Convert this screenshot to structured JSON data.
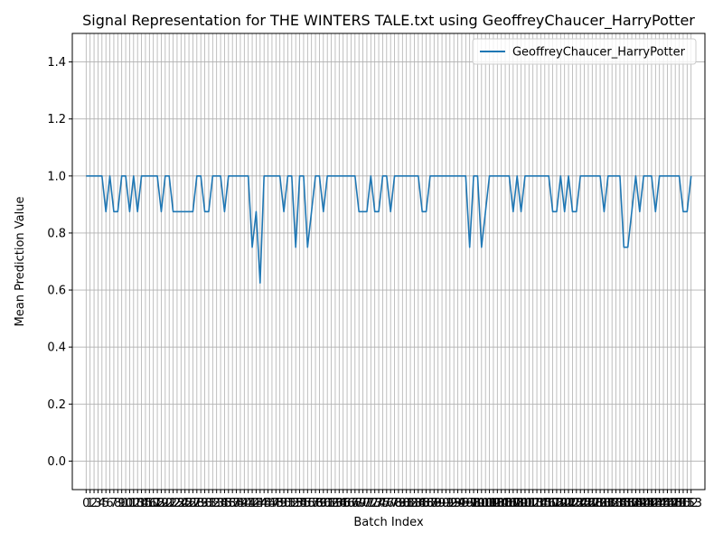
{
  "chart_data": {
    "type": "line",
    "title": "Signal Representation for THE WINTERS TALE.txt using GeoffreyChaucer_HarryPotter",
    "xlabel": "Batch Index",
    "ylabel": "Mean Prediction Value",
    "xlim": [
      -3.5,
      156.5
    ],
    "ylim": [
      -0.1,
      1.5
    ],
    "yticks": [
      0.0,
      0.2,
      0.4,
      0.6,
      0.8,
      1.0,
      1.2,
      1.4
    ],
    "ytick_labels": [
      "0.0",
      "0.2",
      "0.4",
      "0.6",
      "0.8",
      "1.0",
      "1.2",
      "1.4"
    ],
    "xticks": [
      0,
      1,
      2,
      3,
      4,
      5,
      6,
      7,
      8,
      9,
      10,
      11,
      12,
      13,
      14,
      15,
      16,
      17,
      18,
      19,
      20,
      21,
      22,
      23,
      24,
      25,
      26,
      27,
      28,
      29,
      30,
      31,
      32,
      33,
      34,
      35,
      36,
      37,
      38,
      39,
      40,
      41,
      42,
      43,
      44,
      45,
      46,
      47,
      48,
      49,
      50,
      51,
      52,
      53,
      54,
      55,
      56,
      57,
      58,
      59,
      60,
      61,
      62,
      63,
      64,
      65,
      66,
      67,
      68,
      69,
      70,
      71,
      72,
      73,
      74,
      75,
      76,
      77,
      78,
      79,
      80,
      81,
      82,
      83,
      84,
      85,
      86,
      87,
      88,
      89,
      90,
      91,
      92,
      93,
      94,
      95,
      96,
      97,
      98,
      99,
      100,
      101,
      102,
      103,
      104,
      105,
      106,
      107,
      108,
      109,
      110,
      111,
      112,
      113,
      114,
      115,
      116,
      117,
      118,
      119,
      120,
      121,
      122,
      123,
      124,
      125,
      126,
      127,
      128,
      129,
      130,
      131,
      132,
      133,
      134,
      135,
      136,
      137,
      138,
      139,
      140,
      141,
      142,
      143,
      144,
      145,
      146,
      147,
      148,
      149,
      150,
      151,
      152,
      153
    ],
    "xtick_labels": [
      "0",
      "1",
      "2",
      "3",
      "4",
      "5",
      "6",
      "7",
      "8",
      "9",
      "10",
      "11",
      "12",
      "13",
      "14",
      "15",
      "16",
      "17",
      "18",
      "19",
      "20",
      "21",
      "22",
      "23",
      "24",
      "25",
      "26",
      "27",
      "28",
      "29",
      "30",
      "31",
      "32",
      "33",
      "34",
      "35",
      "36",
      "37",
      "38",
      "39",
      "40",
      "41",
      "42",
      "43",
      "44",
      "45",
      "46",
      "47",
      "48",
      "49",
      "50",
      "51",
      "52",
      "53",
      "54",
      "55",
      "56",
      "57",
      "58",
      "59",
      "60",
      "61",
      "62",
      "63",
      "64",
      "65",
      "66",
      "67",
      "68",
      "69",
      "70",
      "71",
      "72",
      "73",
      "74",
      "75",
      "76",
      "77",
      "78",
      "79",
      "80",
      "81",
      "82",
      "83",
      "84",
      "85",
      "86",
      "87",
      "88",
      "89",
      "90",
      "91",
      "92",
      "93",
      "94",
      "95",
      "96",
      "97",
      "98",
      "99",
      "100",
      "101",
      "102",
      "103",
      "104",
      "105",
      "106",
      "107",
      "108",
      "109",
      "110",
      "111",
      "112",
      "113",
      "114",
      "115",
      "116",
      "117",
      "118",
      "119",
      "120",
      "121",
      "122",
      "123",
      "124",
      "125",
      "126",
      "127",
      "128",
      "129",
      "130",
      "131",
      "132",
      "133",
      "134",
      "135",
      "136",
      "137",
      "138",
      "139",
      "140",
      "141",
      "142",
      "143",
      "144",
      "145",
      "146",
      "147",
      "148",
      "149",
      "150",
      "151",
      "152",
      "153"
    ],
    "grid": true,
    "legend_position": "top-right",
    "series": [
      {
        "name": "GeoffreyChaucer_HarryPotter",
        "color": "#1f77b4",
        "x": [
          0,
          1,
          2,
          3,
          4,
          5,
          6,
          7,
          8,
          9,
          10,
          11,
          12,
          13,
          14,
          15,
          16,
          17,
          18,
          19,
          20,
          21,
          22,
          23,
          24,
          25,
          26,
          27,
          28,
          29,
          30,
          31,
          32,
          33,
          34,
          35,
          36,
          37,
          38,
          39,
          40,
          41,
          42,
          43,
          44,
          45,
          46,
          47,
          48,
          49,
          50,
          51,
          52,
          53,
          54,
          55,
          56,
          57,
          58,
          59,
          60,
          61,
          62,
          63,
          64,
          65,
          66,
          67,
          68,
          69,
          70,
          71,
          72,
          73,
          74,
          75,
          76,
          77,
          78,
          79,
          80,
          81,
          82,
          83,
          84,
          85,
          86,
          87,
          88,
          89,
          90,
          91,
          92,
          93,
          94,
          95,
          96,
          97,
          98,
          99,
          100,
          101,
          102,
          103,
          104,
          105,
          106,
          107,
          108,
          109,
          110,
          111,
          112,
          113,
          114,
          115,
          116,
          117,
          118,
          119,
          120,
          121,
          122,
          123,
          124,
          125,
          126,
          127,
          128,
          129,
          130,
          131,
          132,
          133,
          134,
          135,
          136,
          137,
          138,
          139,
          140,
          141,
          142,
          143,
          144,
          145,
          146,
          147,
          148,
          149,
          150,
          151,
          152,
          153
        ],
        "y": [
          1.0,
          1.0,
          1.0,
          1.0,
          1.0,
          0.875,
          1.0,
          0.875,
          0.875,
          1.0,
          1.0,
          0.875,
          1.0,
          0.875,
          1.0,
          1.0,
          1.0,
          1.0,
          1.0,
          0.875,
          1.0,
          1.0,
          0.875,
          0.875,
          0.875,
          0.875,
          0.875,
          0.875,
          1.0,
          1.0,
          0.875,
          0.875,
          1.0,
          1.0,
          1.0,
          0.875,
          1.0,
          1.0,
          1.0,
          1.0,
          1.0,
          1.0,
          0.75,
          0.875,
          0.625,
          1.0,
          1.0,
          1.0,
          1.0,
          1.0,
          0.875,
          1.0,
          1.0,
          0.75,
          1.0,
          1.0,
          0.75,
          0.875,
          1.0,
          1.0,
          0.875,
          1.0,
          1.0,
          1.0,
          1.0,
          1.0,
          1.0,
          1.0,
          1.0,
          0.875,
          0.875,
          0.875,
          1.0,
          0.875,
          0.875,
          1.0,
          1.0,
          0.875,
          1.0,
          1.0,
          1.0,
          1.0,
          1.0,
          1.0,
          1.0,
          0.875,
          0.875,
          1.0,
          1.0,
          1.0,
          1.0,
          1.0,
          1.0,
          1.0,
          1.0,
          1.0,
          1.0,
          0.75,
          1.0,
          1.0,
          0.75,
          0.875,
          1.0,
          1.0,
          1.0,
          1.0,
          1.0,
          1.0,
          0.875,
          1.0,
          0.875,
          1.0,
          1.0,
          1.0,
          1.0,
          1.0,
          1.0,
          1.0,
          0.875,
          0.875,
          1.0,
          0.875,
          1.0,
          0.875,
          0.875,
          1.0,
          1.0,
          1.0,
          1.0,
          1.0,
          1.0,
          0.875,
          1.0,
          1.0,
          1.0,
          1.0,
          0.75,
          0.75,
          0.875,
          1.0,
          0.875,
          1.0,
          1.0,
          1.0,
          0.875,
          1.0,
          1.0,
          1.0,
          1.0,
          1.0,
          1.0,
          0.875,
          0.875,
          1.0
        ]
      }
    ]
  }
}
